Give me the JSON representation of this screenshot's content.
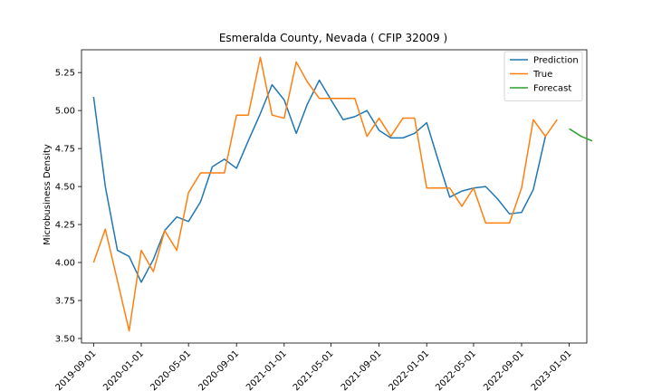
{
  "chart_data": {
    "type": "line",
    "title": "Esmeralda County, Nevada ( CFIP 32009 )",
    "xlabel": "",
    "ylabel": "Microbusiness Density",
    "xlim": [
      "2019-08-01",
      "2023-02-15"
    ],
    "ylim": [
      3.47,
      5.4
    ],
    "x_ticks": [
      "2019-09-01",
      "2020-01-01",
      "2020-05-01",
      "2020-09-01",
      "2021-01-01",
      "2021-05-01",
      "2021-09-01",
      "2022-01-01",
      "2022-05-01",
      "2022-09-01",
      "2023-01-01"
    ],
    "y_ticks": [
      3.5,
      3.75,
      4.0,
      4.25,
      4.5,
      4.75,
      5.0,
      5.25
    ],
    "y_tick_labels": [
      "3.50",
      "3.75",
      "4.00",
      "4.25",
      "4.50",
      "4.75",
      "5.00",
      "5.25"
    ],
    "grid": false,
    "legend_position": "top-right",
    "series": [
      {
        "name": "Prediction",
        "color": "#1f77b4",
        "x": [
          "2019-09-01",
          "2019-10-01",
          "2019-11-01",
          "2019-12-01",
          "2020-01-01",
          "2020-02-01",
          "2020-03-01",
          "2020-04-01",
          "2020-05-01",
          "2020-06-01",
          "2020-07-01",
          "2020-08-01",
          "2020-09-01",
          "2020-10-01",
          "2020-11-01",
          "2020-12-01",
          "2021-01-01",
          "2021-02-01",
          "2021-03-01",
          "2021-04-01",
          "2021-05-01",
          "2021-06-01",
          "2021-07-01",
          "2021-08-01",
          "2021-09-01",
          "2021-10-01",
          "2021-11-01",
          "2021-12-01",
          "2022-01-01",
          "2022-02-01",
          "2022-03-01",
          "2022-04-01",
          "2022-05-01",
          "2022-06-01",
          "2022-07-01",
          "2022-08-01",
          "2022-09-01",
          "2022-10-01",
          "2022-11-01"
        ],
        "y": [
          5.09,
          4.5,
          4.08,
          4.04,
          3.87,
          4.02,
          4.21,
          4.3,
          4.27,
          4.4,
          4.63,
          4.68,
          4.62,
          4.8,
          4.98,
          5.17,
          5.07,
          4.85,
          5.04,
          5.2,
          5.07,
          4.94,
          4.96,
          5.0,
          4.87,
          4.82,
          4.82,
          4.85,
          4.92,
          4.66,
          4.43,
          4.47,
          4.49,
          4.5,
          4.42,
          4.32,
          4.33,
          4.48,
          4.83
        ]
      },
      {
        "name": "True",
        "color": "#ff7f0e",
        "x": [
          "2019-09-01",
          "2019-10-01",
          "2019-11-01",
          "2019-12-01",
          "2020-01-01",
          "2020-02-01",
          "2020-03-01",
          "2020-04-01",
          "2020-05-01",
          "2020-06-01",
          "2020-07-01",
          "2020-08-01",
          "2020-09-01",
          "2020-10-01",
          "2020-11-01",
          "2020-12-01",
          "2021-01-01",
          "2021-02-01",
          "2021-03-01",
          "2021-04-01",
          "2021-05-01",
          "2021-06-01",
          "2021-07-01",
          "2021-08-01",
          "2021-09-01",
          "2021-10-01",
          "2021-11-01",
          "2021-12-01",
          "2022-01-01",
          "2022-02-01",
          "2022-03-01",
          "2022-04-01",
          "2022-05-01",
          "2022-06-01",
          "2022-07-01",
          "2022-08-01",
          "2022-09-01",
          "2022-10-01",
          "2022-11-01",
          "2022-12-01"
        ],
        "y": [
          4.0,
          4.22,
          3.88,
          3.55,
          4.08,
          3.94,
          4.21,
          4.08,
          4.46,
          4.59,
          4.59,
          4.59,
          4.97,
          4.97,
          5.35,
          4.97,
          4.95,
          5.32,
          5.19,
          5.08,
          5.08,
          5.08,
          5.08,
          4.83,
          4.95,
          4.83,
          4.95,
          4.95,
          4.49,
          4.49,
          4.49,
          4.37,
          4.49,
          4.26,
          4.26,
          4.26,
          4.49,
          4.94,
          4.83,
          4.94
        ]
      },
      {
        "name": "Forecast",
        "color": "#2ca02c",
        "x": [
          "2023-01-01",
          "2023-02-01",
          "2023-03-01"
        ],
        "y": [
          4.88,
          4.83,
          4.8
        ]
      }
    ]
  }
}
